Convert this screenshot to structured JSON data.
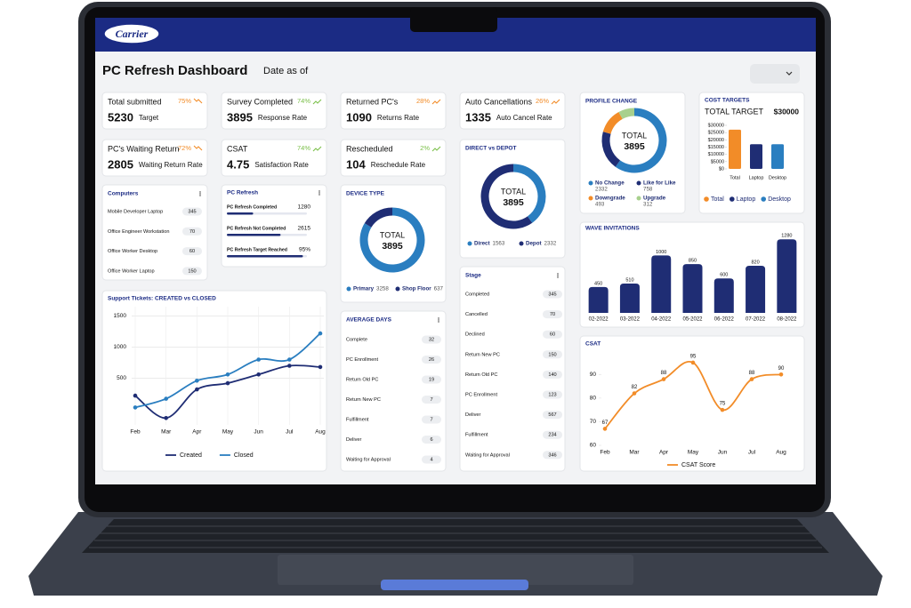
{
  "header": {
    "logo": "Carrier",
    "title": "PC Refresh Dashboard",
    "date_label": "Date as of"
  },
  "kpis": [
    {
      "label": "Total submitted",
      "change": "75%",
      "trend": "down",
      "color": "#f28c28",
      "value": 5230,
      "caption": "Target"
    },
    {
      "label": "Survey Completed",
      "change": "74%",
      "trend": "up",
      "color": "#7cc04b",
      "value": 3895,
      "caption": "Response Rate"
    },
    {
      "label": "Returned PC's",
      "change": "28%",
      "trend": "up",
      "color": "#f28c28",
      "value": 1090,
      "caption": "Returns Rate"
    },
    {
      "label": "Auto Cancellations",
      "change": "26%",
      "trend": "up",
      "color": "#f28c28",
      "value": 1335,
      "caption": "Auto Cancel Rate"
    },
    {
      "label": "PC's Waiting Return",
      "change": "72%",
      "trend": "down",
      "color": "#f28c28",
      "value": 2805,
      "caption": "Waiting Return Rate"
    },
    {
      "label": "CSAT",
      "change": "74%",
      "trend": "up",
      "color": "#7cc04b",
      "value": 4.75,
      "caption": "Satisfaction Rate"
    },
    {
      "label": "Rescheduled",
      "change": "2%",
      "trend": "up",
      "color": "#7cc04b",
      "value": 104,
      "caption": "Reschedule Rate"
    }
  ],
  "computers": {
    "title": "Computers",
    "items": [
      {
        "label": "Mobile Developer Laptop",
        "value": 345
      },
      {
        "label": "Office Engineer Workstation",
        "value": 70
      },
      {
        "label": "Office Worker Desktop",
        "value": 60
      },
      {
        "label": "Office Worker Laptop",
        "value": 150
      }
    ]
  },
  "pc_refresh": {
    "title": "PC Refresh",
    "items": [
      {
        "label": "PC Refresh Completed",
        "value": 1280
      },
      {
        "label": "PC Refresh Not Completed",
        "value": 2615
      },
      {
        "label": "PC Refresh Target Reached",
        "value": 95,
        "value_label": "95%"
      }
    ]
  },
  "device_type": {
    "type": "donut",
    "title": "DEVICE TYPE",
    "center_label": "TOTAL",
    "total": 3895,
    "categories": [
      "Primary",
      "Shop Floor"
    ],
    "values": [
      3258,
      637
    ],
    "colors": [
      "#2a7ec0",
      "#1f2d74"
    ]
  },
  "direct_vs_depot": {
    "type": "donut",
    "title": "DIRECT vs DEPOT",
    "center_label": "TOTAL",
    "total": 3895,
    "categories": [
      "Direct",
      "Depot"
    ],
    "values": [
      1563,
      2332
    ],
    "colors": [
      "#2a7ec0",
      "#1f2d74"
    ]
  },
  "profile_change": {
    "type": "donut",
    "title": "PROFILE CHANGE",
    "center_label": "TOTAL",
    "total": 3895,
    "categories": [
      "No Change",
      "Like for Like",
      "Downgrade",
      "Upgrade"
    ],
    "values": [
      2332,
      758,
      493,
      312
    ],
    "colors": [
      "#2a7ec0",
      "#1f2d74",
      "#f28c28",
      "#a8d08d"
    ]
  },
  "cost_targets": {
    "type": "bar",
    "title": "COST TARGETS",
    "subtitle": "TOTAL TARGET",
    "target_label": "$30000",
    "categories": [
      "Total",
      "Laptop",
      "Desktop"
    ],
    "values": [
      27000,
      17000,
      17000
    ],
    "colors": [
      "#f28c28",
      "#1f2d74",
      "#2a7ec0"
    ],
    "ylim": [
      0,
      30000
    ],
    "yticks": [
      {
        "value": 0,
        "label": "$0"
      },
      {
        "value": 5000,
        "label": "$5000"
      },
      {
        "value": 10000,
        "label": "$10000"
      },
      {
        "value": 15000,
        "label": "$15000"
      },
      {
        "value": 20000,
        "label": "$20000"
      },
      {
        "value": 25000,
        "label": "$25000"
      },
      {
        "value": 30000,
        "label": "$30000"
      }
    ]
  },
  "wave_invitations": {
    "type": "bar",
    "title": "WAVE INVITATIONS",
    "categories": [
      "02-2022",
      "03-2022",
      "04-2022",
      "05-2022",
      "06-2022",
      "07-2022",
      "08-2022"
    ],
    "values": [
      450,
      510,
      1000,
      850,
      600,
      820,
      1280
    ],
    "color": "#1f2d74",
    "ylim": [
      0,
      1300
    ],
    "data_labels": true
  },
  "support_tickets": {
    "type": "line",
    "title": "Support Tickets: CREATED vs CLOSED",
    "x": [
      "Feb",
      "Mar",
      "Apr",
      "May",
      "Jun",
      "Jul",
      "Aug"
    ],
    "series": [
      {
        "name": "Created",
        "color": "#1f2d74",
        "values": [
          220,
          -140,
          320,
          420,
          560,
          700,
          680
        ]
      },
      {
        "name": "Closed",
        "color": "#2a7ec0",
        "values": [
          30,
          170,
          460,
          560,
          800,
          800,
          1220
        ]
      }
    ],
    "ylim": [
      -250,
      1650
    ],
    "yticks": [
      500,
      1000,
      1500
    ],
    "grid": true
  },
  "csat": {
    "type": "line",
    "title": "CSAT",
    "x": [
      "Feb",
      "Mar",
      "Apr",
      "May",
      "Jun",
      "Jul",
      "Aug"
    ],
    "series": [
      {
        "name": "CSAT Score",
        "color": "#f28c28",
        "values": [
          67,
          82,
          88,
          95,
          75,
          88,
          90
        ]
      }
    ],
    "ylim": [
      60,
      98
    ],
    "yticks": [
      60,
      70,
      80,
      90
    ],
    "grid": false,
    "data_labels": true
  },
  "average_days": {
    "title": "AVERAGE DAYS",
    "items": [
      {
        "label": "Complete",
        "value": 32
      },
      {
        "label": "PC Enrollment",
        "value": 26
      },
      {
        "label": "Return Old PC",
        "value": 19
      },
      {
        "label": "Return New PC",
        "value": 7
      },
      {
        "label": "Fulfillment",
        "value": 7
      },
      {
        "label": "Deliver",
        "value": 6
      },
      {
        "label": "Waiting for Approval",
        "value": 4
      }
    ]
  },
  "stage": {
    "title": "Stage",
    "items": [
      {
        "label": "Completed",
        "value": 345
      },
      {
        "label": "Cancelled",
        "value": 70
      },
      {
        "label": "Declined",
        "value": 60
      },
      {
        "label": "Return New PC",
        "value": 150
      },
      {
        "label": "Return Old PC",
        "value": 140
      },
      {
        "label": "PC Enrollment",
        "value": 123
      },
      {
        "label": "Deliver",
        "value": 567
      },
      {
        "label": "Fulfillment",
        "value": 234
      },
      {
        "label": "Waiting for Approval",
        "value": 346
      }
    ]
  }
}
